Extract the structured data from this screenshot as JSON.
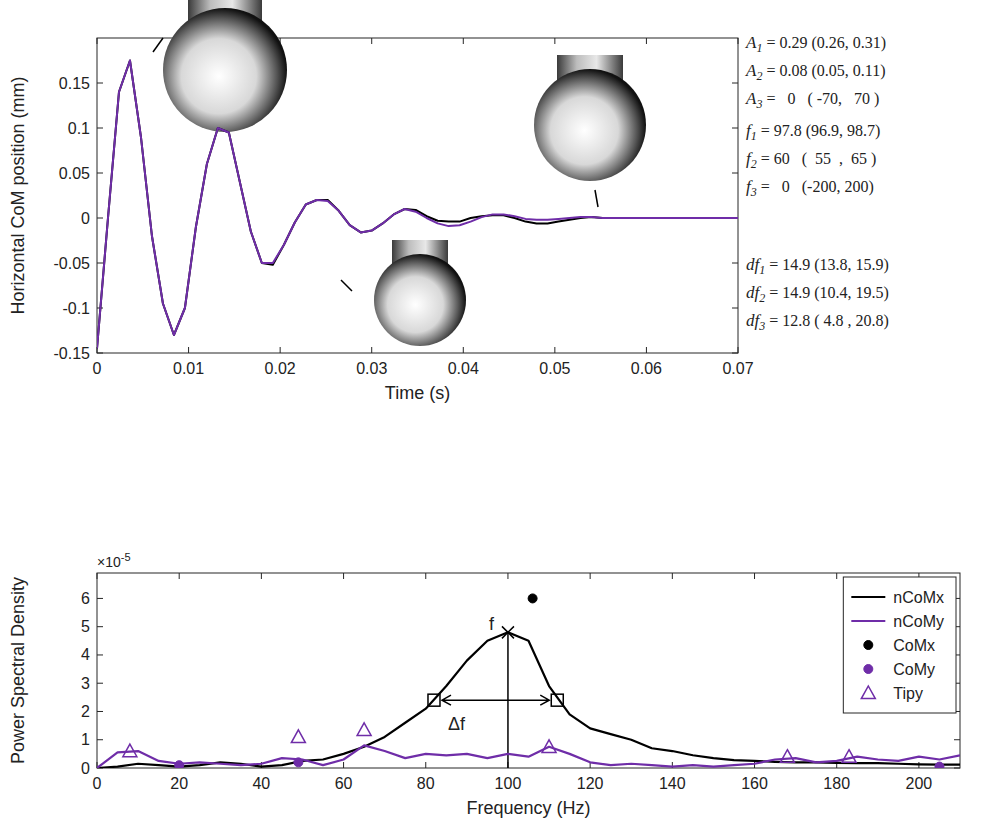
{
  "chart_data": [
    {
      "type": "line",
      "x_label": "Time (s)",
      "y_label": "Horizontal CoM position (mm)",
      "x": [
        0,
        0.0012,
        0.0024,
        0.0036,
        0.0048,
        0.006,
        0.0072,
        0.0084,
        0.0096,
        0.0108,
        0.012,
        0.0132,
        0.0144,
        0.0156,
        0.0168,
        0.018,
        0.0192,
        0.0204,
        0.0216,
        0.0228,
        0.024,
        0.0252,
        0.0264,
        0.0276,
        0.0288,
        0.03,
        0.0312,
        0.0324,
        0.0336,
        0.0348,
        0.036,
        0.0372,
        0.0384,
        0.0396,
        0.0408,
        0.042,
        0.0432,
        0.0444,
        0.0456,
        0.0468,
        0.048,
        0.0492,
        0.0504,
        0.0516,
        0.0528,
        0.054,
        0.0552,
        0.0564,
        0.0576,
        0.06,
        0.065,
        0.07
      ],
      "series": [
        {
          "color": "#000000",
          "values": [
            -0.145,
            0.0,
            0.14,
            0.175,
            0.09,
            -0.02,
            -0.095,
            -0.13,
            -0.1,
            -0.01,
            0.06,
            0.1,
            0.095,
            0.04,
            -0.015,
            -0.05,
            -0.052,
            -0.03,
            -0.005,
            0.015,
            0.02,
            0.02,
            0.008,
            -0.008,
            -0.016,
            -0.014,
            -0.006,
            0.004,
            0.01,
            0.009,
            0.002,
            -0.003,
            -0.004,
            -0.004,
            0.0,
            0.002,
            0.003,
            0.003,
            0.0,
            -0.004,
            -0.006,
            -0.006,
            -0.004,
            -0.002,
            0.0,
            0.001,
            0.0,
            0.0,
            0.0,
            0.0,
            0,
            0
          ]
        },
        {
          "color": "#6f2da8",
          "values": [
            -0.145,
            0.0,
            0.14,
            0.175,
            0.09,
            -0.02,
            -0.095,
            -0.13,
            -0.1,
            -0.01,
            0.06,
            0.1,
            0.095,
            0.04,
            -0.015,
            -0.05,
            -0.05,
            -0.03,
            -0.005,
            0.015,
            0.02,
            0.019,
            0.008,
            -0.008,
            -0.016,
            -0.014,
            -0.006,
            0.004,
            0.01,
            0.007,
            0.0,
            -0.006,
            -0.009,
            -0.008,
            -0.004,
            0.001,
            0.004,
            0.004,
            0.002,
            -0.001,
            -0.002,
            -0.002,
            -0.001,
            0.0,
            0.001,
            0.001,
            0.0,
            0.0,
            0.0,
            0.0,
            0,
            0
          ]
        }
      ],
      "xlim": [
        0,
        0.07
      ],
      "xticks": [
        0,
        0.01,
        0.02,
        0.03,
        0.04,
        0.05,
        0.06,
        0.07
      ],
      "ylim": [
        -0.15,
        0.2
      ],
      "yticks": [
        -0.15,
        -0.1,
        -0.05,
        0,
        0.05,
        0.1,
        0.15
      ],
      "parameters": [
        {
          "symbol": "A",
          "index": "1",
          "text": " = 0.29 (0.26, 0.31)"
        },
        {
          "symbol": "A",
          "index": "2",
          "text": " = 0.08 (0.05, 0.11)"
        },
        {
          "symbol": "A",
          "index": "3",
          "text": " =   0   ( -70,   70 )"
        },
        {
          "symbol": "f",
          "index": "1",
          "text": " = 97.8 (96.9, 98.7)"
        },
        {
          "symbol": "f",
          "index": "2",
          "text": " = 60   (  55  ,  65 )"
        },
        {
          "symbol": "f",
          "index": "3",
          "text": " =   0   (-200, 200)"
        },
        {
          "symbol": "df",
          "index": "1",
          "text": " = 14.9 (13.8, 15.9)"
        },
        {
          "symbol": "df",
          "index": "2",
          "text": " = 14.9 (10.4, 19.5)"
        },
        {
          "symbol": "df",
          "index": "3",
          "text": " = 12.8 ( 4.8 , 20.8)"
        }
      ]
    },
    {
      "type": "line",
      "x_label": "Frequency (Hz)",
      "y_label": "Power Spectral Density",
      "y_multiplier": {
        "base": "×10",
        "exponent": "-5"
      },
      "x": [
        0,
        5,
        10,
        15,
        20,
        25,
        30,
        35,
        40,
        45,
        50,
        55,
        60,
        65,
        70,
        75,
        80,
        85,
        90,
        95,
        100,
        105,
        110,
        115,
        120,
        125,
        130,
        135,
        140,
        145,
        150,
        155,
        160,
        165,
        170,
        175,
        180,
        185,
        190,
        195,
        200,
        205,
        210
      ],
      "series": [
        {
          "name": "nCoMx",
          "type": "line",
          "color": "#000000",
          "values": [
            0,
            0.05,
            0.15,
            0.1,
            0.05,
            0.1,
            0.2,
            0.15,
            0.05,
            0.1,
            0.25,
            0.3,
            0.5,
            0.75,
            1.1,
            1.6,
            2.1,
            2.9,
            3.8,
            4.5,
            4.8,
            4.5,
            2.9,
            1.9,
            1.4,
            1.2,
            1.0,
            0.7,
            0.6,
            0.45,
            0.35,
            0.28,
            0.25,
            0.22,
            0.2,
            0.2,
            0.18,
            0.17,
            0.17,
            0.15,
            0.13,
            0.12,
            0.12
          ]
        },
        {
          "name": "nCoMy",
          "type": "line",
          "color": "#6f2da8",
          "values": [
            0,
            0.55,
            0.6,
            0.25,
            0.15,
            0.2,
            0.15,
            0.1,
            0.15,
            0.35,
            0.3,
            0.1,
            0.3,
            0.8,
            0.6,
            0.35,
            0.5,
            0.45,
            0.5,
            0.35,
            0.5,
            0.4,
            0.75,
            0.5,
            0.2,
            0.1,
            0.15,
            0.1,
            0.05,
            0.1,
            0.05,
            0.1,
            0.15,
            0.3,
            0.35,
            0.2,
            0.25,
            0.4,
            0.3,
            0.25,
            0.4,
            0.3,
            0.45
          ]
        },
        {
          "name": "CoMx",
          "type": "scatter",
          "marker": "circle",
          "color": "#000000",
          "x": [
            106
          ],
          "values": [
            6.0
          ]
        },
        {
          "name": "CoMy",
          "type": "scatter",
          "marker": "circle",
          "color": "#6f2da8",
          "x": [
            20,
            49,
            205
          ],
          "values": [
            0.1,
            0.2,
            0.05
          ]
        },
        {
          "name": "Tipy",
          "type": "scatter",
          "marker": "triangle-open",
          "color": "#6f2da8",
          "x": [
            8,
            49,
            65,
            110,
            168,
            183
          ],
          "values": [
            0.6,
            1.1,
            1.35,
            0.75,
            0.4,
            0.4
          ]
        }
      ],
      "xlim": [
        0,
        210
      ],
      "xticks": [
        0,
        20,
        40,
        60,
        80,
        100,
        120,
        140,
        160,
        180,
        200
      ],
      "ylim": [
        0,
        6.9
      ],
      "yticks": [
        0,
        1,
        2,
        3,
        4,
        5,
        6
      ],
      "legend": "upper right",
      "peak": {
        "label": "f",
        "x": 100,
        "y": 4.8
      },
      "half_width": {
        "label": "Δf",
        "x": [
          82,
          112
        ],
        "y": 2.4
      }
    }
  ]
}
